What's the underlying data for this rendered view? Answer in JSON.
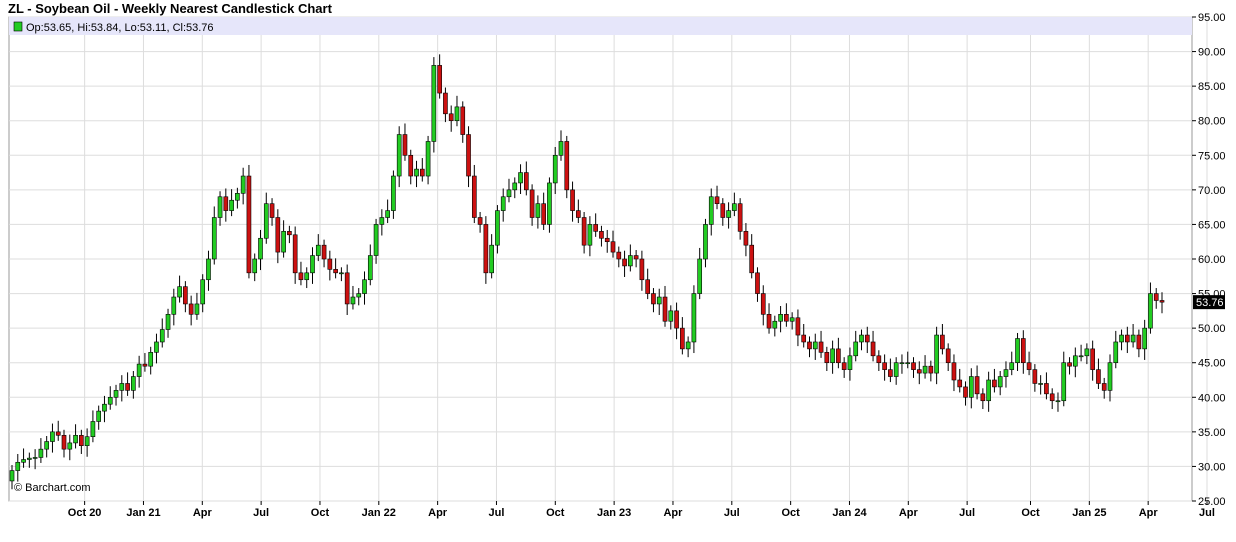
{
  "header": {
    "title": "ZL - Soybean Oil - Weekly Nearest Candlestick Chart"
  },
  "colors": {
    "up": "#22cc22",
    "down": "#cc1111",
    "grid": "#dddddd",
    "legend_bar": "#e6e6fa",
    "price_tag": "#000000"
  },
  "chart_data": {
    "type": "candlestick",
    "title": "ZL - Soybean Oil - Weekly Nearest Candlestick Chart",
    "ohlc_label": "Op:53.65, Hi:53.84, Lo:53.11, Cl:53.76",
    "last_price_label": "53.76",
    "watermark": "© Barchart.com",
    "ylim": [
      25,
      95
    ],
    "y_ticks": [
      "95.00",
      "90.00",
      "85.00",
      "80.00",
      "75.00",
      "70.00",
      "65.00",
      "60.00",
      "55.00",
      "50.00",
      "45.00",
      "40.00",
      "35.00",
      "30.00",
      "25.00"
    ],
    "x_tick_labels": [
      "Oct 20",
      "Jan 21",
      "Apr",
      "Jul",
      "Oct",
      "Jan 22",
      "Apr",
      "Jul",
      "Oct",
      "Jan 23",
      "Apr",
      "Jul",
      "Oct",
      "Jan 24",
      "Apr",
      "Jul",
      "Oct",
      "Jan 25",
      "Apr",
      "Jul"
    ],
    "grid": true,
    "close": [
      29.4,
      30.6,
      31.0,
      31.2,
      31.3,
      32.5,
      33.6,
      35.0,
      34.5,
      32.5,
      33.4,
      34.5,
      33.0,
      34.3,
      36.5,
      38.0,
      39.0,
      40.0,
      41.0,
      42.0,
      41.0,
      43.0,
      44.8,
      44.5,
      46.5,
      48.0,
      49.8,
      52.0,
      54.5,
      56.0,
      53.5,
      52.0,
      53.5,
      57.0,
      60.0,
      66.0,
      69.0,
      67.0,
      68.5,
      69.5,
      72.0,
      58.0,
      60.0,
      63.0,
      68.0,
      66.0,
      61.0,
      64.0,
      63.5,
      58.0,
      57.0,
      58.0,
      60.5,
      62.0,
      60.0,
      58.5,
      58.0,
      58.0,
      53.5,
      54.5,
      55.0,
      57.0,
      60.5,
      65.0,
      66.0,
      67.0,
      72.0,
      78.0,
      75.0,
      72.0,
      73.0,
      72.0,
      77.0,
      88.0,
      84.0,
      81.0,
      80.0,
      82.0,
      78.0,
      72.0,
      66.0,
      65.0,
      58.0,
      62.0,
      67.0,
      69.0,
      70.0,
      71.0,
      72.5,
      70.0,
      66.0,
      68.0,
      65.0,
      71.0,
      75.0,
      77.0,
      70.0,
      67.0,
      66.0,
      62.0,
      65.0,
      64.0,
      63.0,
      62.5,
      61.0,
      60.0,
      59.0,
      60.5,
      60.0,
      57.0,
      55.0,
      53.5,
      54.5,
      51.0,
      52.5,
      50.0,
      47.0,
      48.0,
      55.0,
      60.0,
      65.0,
      69.0,
      68.0,
      66.0,
      67.0,
      68.0,
      64.0,
      62.0,
      58.0,
      55.0,
      52.0,
      50.0,
      51.0,
      52.0,
      51.0,
      51.5,
      49.0,
      48.0,
      47.0,
      48.0,
      46.5,
      45.0,
      47.0,
      45.0,
      44.0,
      46.0,
      48.0,
      49.0,
      48.0,
      46.0,
      45.0,
      44.0,
      43.0,
      45.0,
      45.0,
      45.0,
      44.0,
      43.5,
      44.5,
      43.5,
      49.0,
      47.0,
      45.0,
      42.5,
      41.5,
      40.0,
      43.0,
      40.5,
      39.5,
      42.5,
      41.5,
      43.0,
      44.0,
      45.0,
      48.5,
      45.0,
      44.0,
      42.0,
      42.0,
      40.5,
      39.5,
      39.5,
      45.0,
      44.5,
      46.0,
      46.0,
      47.0,
      44.0,
      42.0,
      41.0,
      45.0,
      48.0,
      49.0,
      48.0,
      49.0,
      47.0,
      50.0,
      55.0,
      54.0,
      53.76
    ],
    "series": [
      {
        "values_key": "close"
      }
    ],
    "last_value": 53.76
  }
}
